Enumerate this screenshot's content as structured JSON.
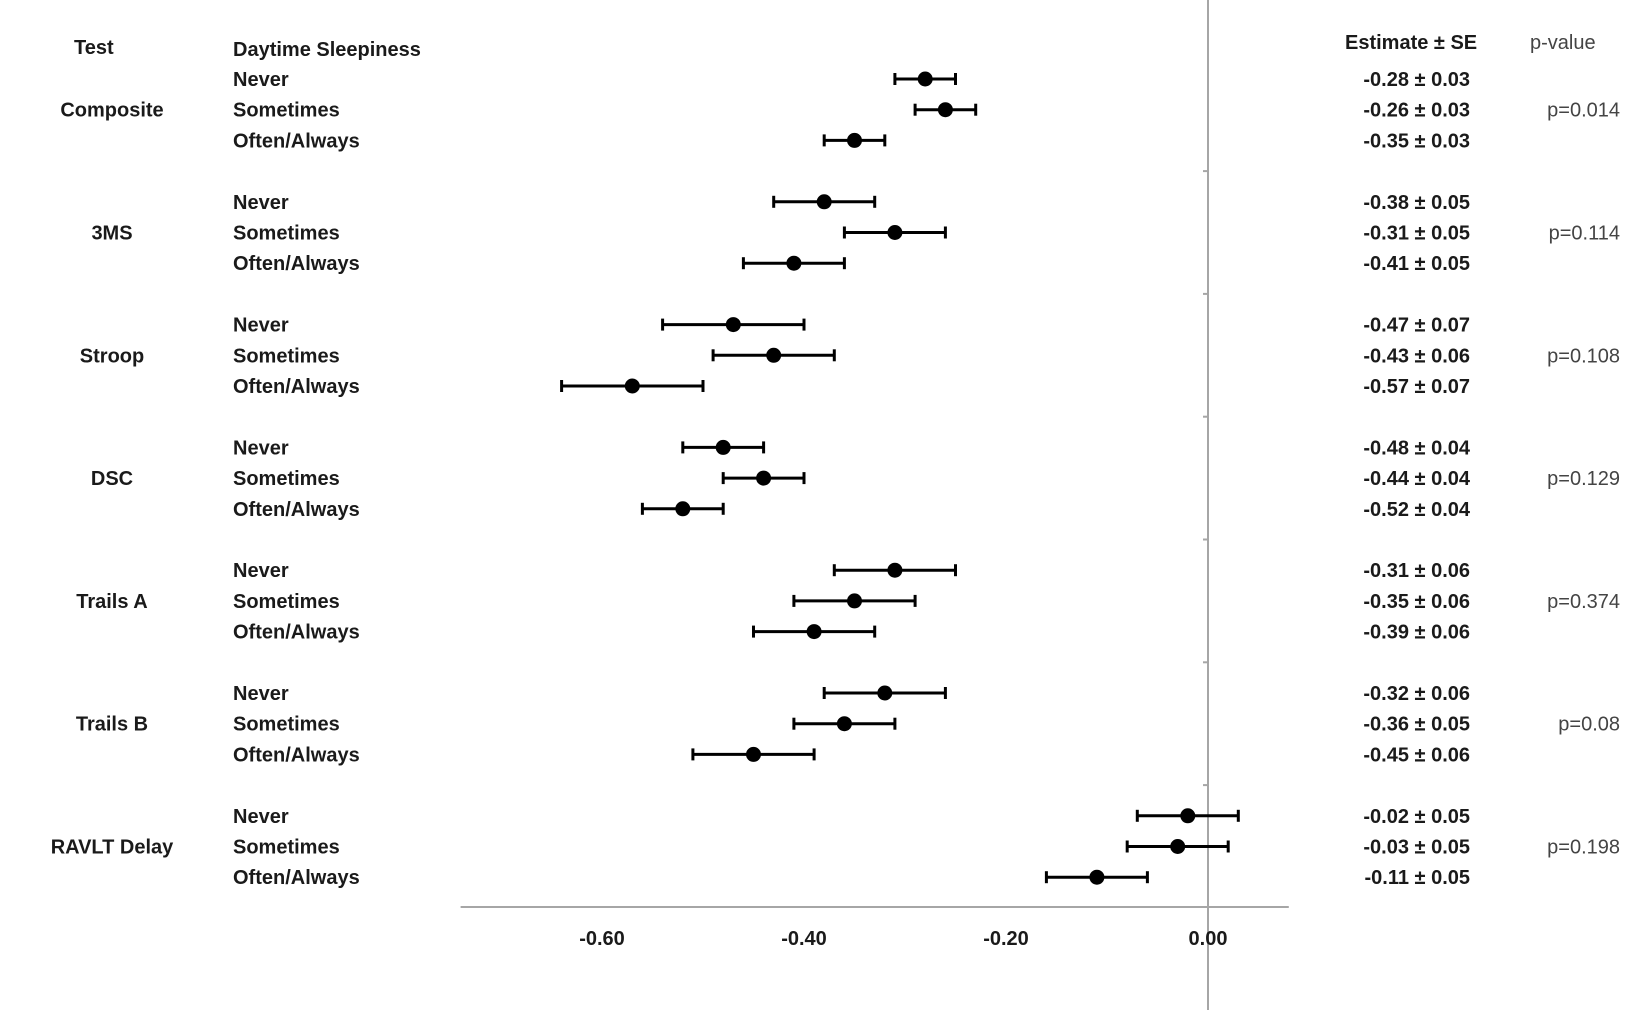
{
  "headers": {
    "test": "Test",
    "group": "Daytime Sleepiness",
    "estimate": "Estimate ± SE",
    "pvalue": "p-value"
  },
  "chart_data": {
    "type": "scatter",
    "subtype": "forest-plot",
    "x_range": [
      -0.74,
      0.08
    ],
    "x_ticks": [
      "-0.60",
      "-0.40",
      "-0.20",
      "0.00"
    ],
    "x_tick_values": [
      -0.6,
      -0.4,
      -0.2,
      0.0
    ],
    "reference_line": 0.0,
    "level_names": [
      "Never",
      "Sometimes",
      "Often/Always"
    ],
    "tests": [
      {
        "name": "Composite",
        "pvalue": "p=0.014",
        "rows": [
          {
            "level": "Never",
            "estimate": -0.28,
            "se": 0.03,
            "label": "-0.28 ± 0.03"
          },
          {
            "level": "Sometimes",
            "estimate": -0.26,
            "se": 0.03,
            "label": "-0.26 ± 0.03"
          },
          {
            "level": "Often/Always",
            "estimate": -0.35,
            "se": 0.03,
            "label": "-0.35 ± 0.03"
          }
        ]
      },
      {
        "name": "3MS",
        "pvalue": "p=0.114",
        "rows": [
          {
            "level": "Never",
            "estimate": -0.38,
            "se": 0.05,
            "label": "-0.38 ± 0.05"
          },
          {
            "level": "Sometimes",
            "estimate": -0.31,
            "se": 0.05,
            "label": "-0.31 ± 0.05"
          },
          {
            "level": "Often/Always",
            "estimate": -0.41,
            "se": 0.05,
            "label": "-0.41 ± 0.05"
          }
        ]
      },
      {
        "name": "Stroop",
        "pvalue": "p=0.108",
        "rows": [
          {
            "level": "Never",
            "estimate": -0.47,
            "se": 0.07,
            "label": "-0.47 ± 0.07"
          },
          {
            "level": "Sometimes",
            "estimate": -0.43,
            "se": 0.06,
            "label": "-0.43 ± 0.06"
          },
          {
            "level": "Often/Always",
            "estimate": -0.57,
            "se": 0.07,
            "label": "-0.57 ± 0.07"
          }
        ]
      },
      {
        "name": "DSC",
        "pvalue": "p=0.129",
        "rows": [
          {
            "level": "Never",
            "estimate": -0.48,
            "se": 0.04,
            "label": "-0.48 ± 0.04"
          },
          {
            "level": "Sometimes",
            "estimate": -0.44,
            "se": 0.04,
            "label": "-0.44 ± 0.04"
          },
          {
            "level": "Often/Always",
            "estimate": -0.52,
            "se": 0.04,
            "label": "-0.52 ± 0.04"
          }
        ]
      },
      {
        "name": "Trails A",
        "pvalue": "p=0.374",
        "rows": [
          {
            "level": "Never",
            "estimate": -0.31,
            "se": 0.06,
            "label": "-0.31 ± 0.06"
          },
          {
            "level": "Sometimes",
            "estimate": -0.35,
            "se": 0.06,
            "label": "-0.35 ± 0.06"
          },
          {
            "level": "Often/Always",
            "estimate": -0.39,
            "se": 0.06,
            "label": "-0.39 ± 0.06"
          }
        ]
      },
      {
        "name": "Trails B",
        "pvalue": "p=0.08",
        "rows": [
          {
            "level": "Never",
            "estimate": -0.32,
            "se": 0.06,
            "label": "-0.32 ± 0.06"
          },
          {
            "level": "Sometimes",
            "estimate": -0.36,
            "se": 0.05,
            "label": "-0.36 ± 0.05"
          },
          {
            "level": "Often/Always",
            "estimate": -0.45,
            "se": 0.06,
            "label": "-0.45 ± 0.06"
          }
        ]
      },
      {
        "name": "RAVLT Delay",
        "pvalue": "p=0.198",
        "rows": [
          {
            "level": "Never",
            "estimate": -0.02,
            "se": 0.05,
            "label": "-0.02 ± 0.05"
          },
          {
            "level": "Sometimes",
            "estimate": -0.03,
            "se": 0.05,
            "label": "-0.03 ± 0.05"
          },
          {
            "level": "Often/Always",
            "estimate": -0.11,
            "se": 0.05,
            "label": "-0.11 ± 0.05"
          }
        ]
      }
    ],
    "colors": {
      "marker": "#000000",
      "axis": "#a6a6a6"
    }
  }
}
